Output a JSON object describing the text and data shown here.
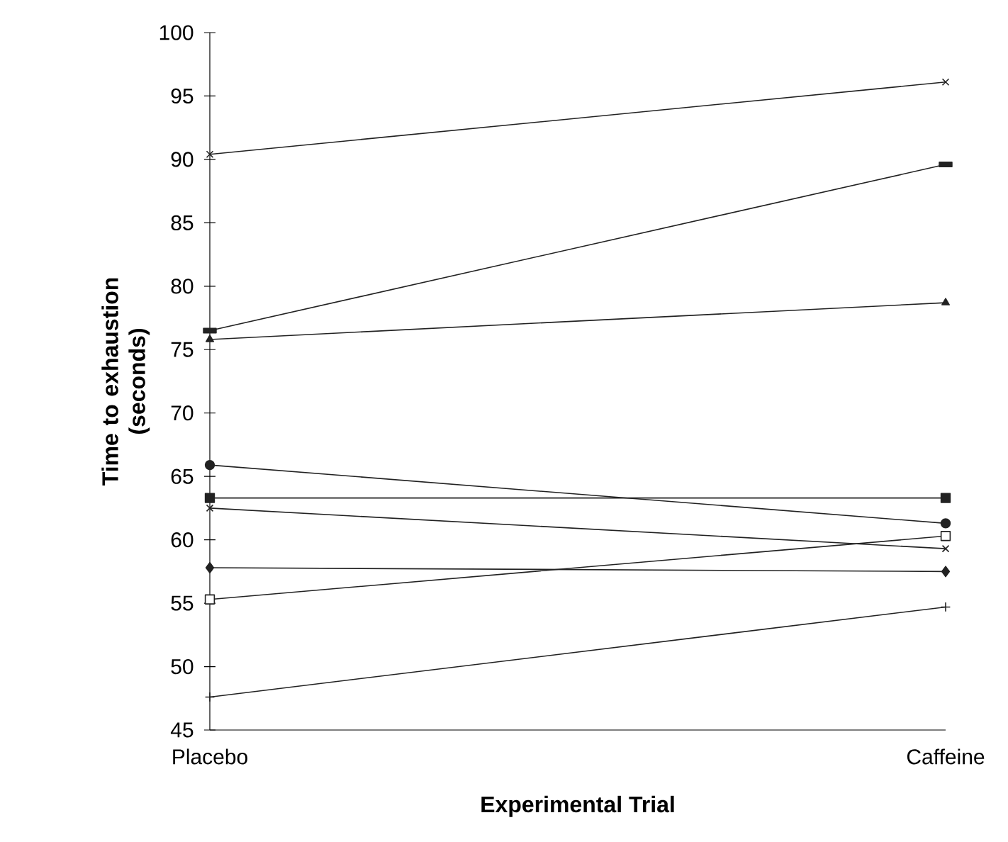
{
  "chart_data": {
    "type": "line",
    "xlabel": "Experimental Trial",
    "ylabel": "Time to exhaustion (seconds)",
    "categories": [
      "Placebo",
      "Caffeine"
    ],
    "ylim": [
      45,
      100
    ],
    "yticks": [
      45,
      50,
      55,
      60,
      65,
      70,
      75,
      80,
      85,
      90,
      95,
      100
    ],
    "grid": false,
    "line_style": "solid",
    "series": [
      {
        "color": "#222222",
        "marker": "cross",
        "values": [
          90.4,
          96.1
        ]
      },
      {
        "color": "#222222",
        "marker": "square",
        "values": [
          76.5,
          89.6
        ]
      },
      {
        "color": "#222222",
        "marker": "triangle",
        "values": [
          75.8,
          78.7
        ]
      },
      {
        "color": "#222222",
        "marker": "circle",
        "values": [
          65.9,
          61.3
        ]
      },
      {
        "color": "#222222",
        "marker": "square",
        "values": [
          63.3,
          63.3
        ]
      },
      {
        "color": "#222222",
        "marker": "cross",
        "values": [
          62.5,
          59.3
        ]
      },
      {
        "color": "#222222",
        "marker": "diamond",
        "values": [
          57.8,
          57.5
        ]
      },
      {
        "color": "#222222",
        "marker": "square",
        "colors": [
          "#ffffff",
          "#ffffff"
        ],
        "values": [
          55.3,
          60.3
        ]
      },
      {
        "color": "#222222",
        "marker": "plus",
        "values": [
          47.6,
          54.7
        ]
      }
    ]
  }
}
